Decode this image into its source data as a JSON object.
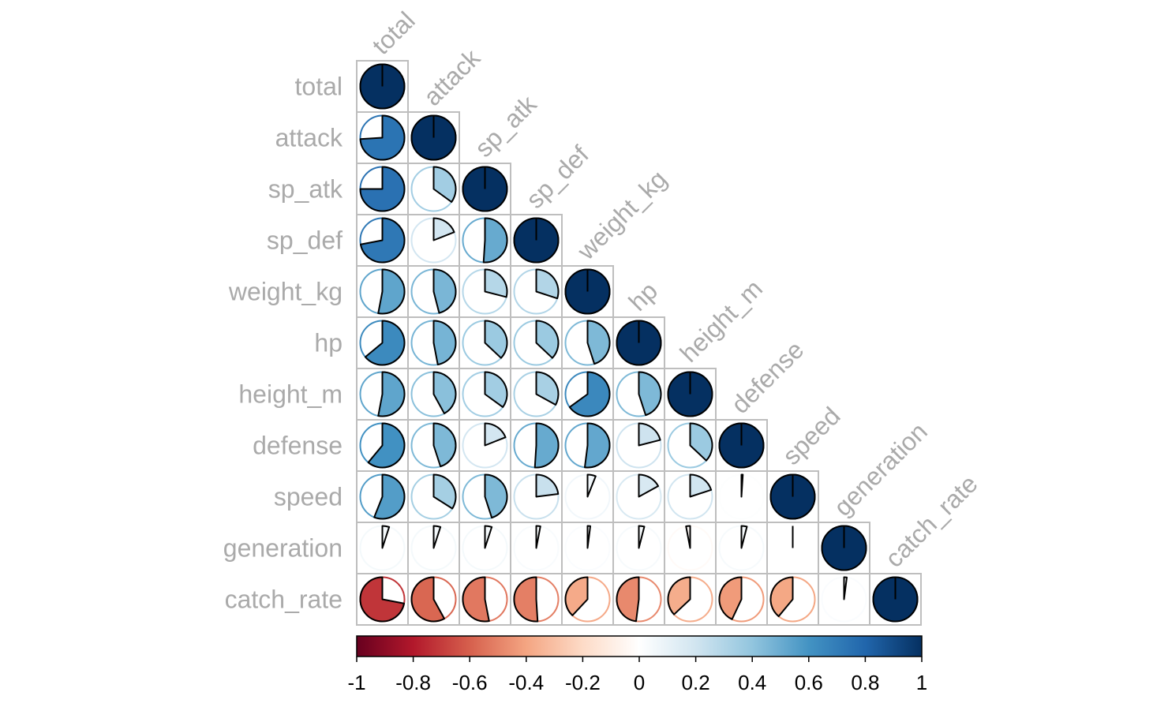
{
  "chart_data": {
    "type": "heatmap",
    "variables": [
      "total",
      "attack",
      "sp_atk",
      "sp_def",
      "weight_kg",
      "hp",
      "height_m",
      "defense",
      "speed",
      "generation",
      "catch_rate"
    ],
    "matrix": [
      [
        1.0,
        0.74,
        0.75,
        0.72,
        0.53,
        0.64,
        0.53,
        0.61,
        0.56,
        0.05,
        -0.72
      ],
      [
        0.74,
        1.0,
        0.35,
        0.19,
        0.46,
        0.47,
        0.42,
        0.45,
        0.34,
        0.05,
        -0.58
      ],
      [
        0.75,
        0.35,
        1.0,
        0.51,
        0.29,
        0.37,
        0.35,
        0.19,
        0.45,
        0.05,
        -0.53
      ],
      [
        0.72,
        0.19,
        0.51,
        1.0,
        0.3,
        0.37,
        0.33,
        0.51,
        0.23,
        0.03,
        -0.51
      ],
      [
        0.53,
        0.46,
        0.29,
        0.3,
        1.0,
        0.45,
        0.65,
        0.52,
        0.06,
        0.02,
        -0.38
      ],
      [
        0.64,
        0.47,
        0.37,
        0.37,
        0.45,
        1.0,
        0.45,
        0.21,
        0.17,
        0.04,
        -0.48
      ],
      [
        0.53,
        0.42,
        0.35,
        0.33,
        0.65,
        0.45,
        1.0,
        0.37,
        0.2,
        -0.03,
        -0.37
      ],
      [
        0.61,
        0.45,
        0.19,
        0.51,
        0.52,
        0.21,
        0.37,
        1.0,
        0.01,
        0.04,
        -0.43
      ],
      [
        0.56,
        0.34,
        0.45,
        0.23,
        0.06,
        0.17,
        0.2,
        0.01,
        1.0,
        0.0,
        -0.39
      ],
      [
        0.05,
        0.05,
        0.05,
        0.03,
        0.02,
        0.04,
        -0.03,
        0.04,
        0.0,
        1.0,
        0.02
      ],
      [
        -0.72,
        -0.58,
        -0.53,
        -0.51,
        -0.38,
        -0.48,
        -0.37,
        -0.43,
        -0.39,
        0.02,
        1.0
      ]
    ],
    "colorbar": {
      "range": [
        -1,
        1
      ],
      "ticks": [
        "-1",
        "-0.8",
        "-0.6",
        "-0.4",
        "-0.2",
        "0",
        "0.2",
        "0.4",
        "0.6",
        "0.8",
        "1"
      ]
    },
    "palette": [
      "#67001F",
      "#B2182B",
      "#D6604D",
      "#F4A582",
      "#FDDBC7",
      "#FFFFFF",
      "#D1E5F0",
      "#92C5DE",
      "#4393C3",
      "#2166AC",
      "#053061"
    ],
    "layout": "lower-triangle",
    "glyph": "pie",
    "legend_position": "bottom"
  }
}
